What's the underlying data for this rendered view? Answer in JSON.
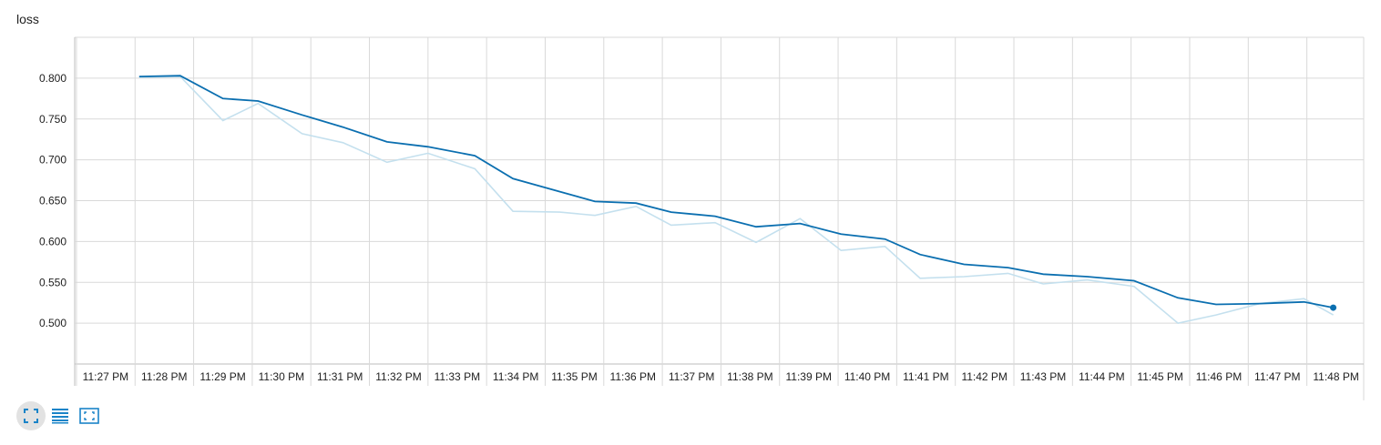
{
  "title": "loss",
  "colors": {
    "main_line": "#0b6fb0",
    "raw_line": "#c4e0ee",
    "grid": "#d9d9d9",
    "axis": "#bdbdbd",
    "icon": "#1a84c8"
  },
  "toolbar": {
    "buttons": [
      {
        "name": "fit-domain-button",
        "icon": "fullscreen-icon",
        "active": true
      },
      {
        "name": "toggle-log-button",
        "icon": "list-lines-icon",
        "active": false
      },
      {
        "name": "zoom-reset-button",
        "icon": "frame-select-icon",
        "active": false
      }
    ]
  },
  "chart_data": {
    "type": "line",
    "title": "loss",
    "xlabel": "",
    "ylabel": "",
    "x_ticks": [
      "11:27 PM",
      "11:28 PM",
      "11:29 PM",
      "11:30 PM",
      "11:31 PM",
      "11:32 PM",
      "11:33 PM",
      "11:34 PM",
      "11:35 PM",
      "11:36 PM",
      "11:37 PM",
      "11:38 PM",
      "11:39 PM",
      "11:40 PM",
      "11:41 PM",
      "11:42 PM",
      "11:43 PM",
      "11:44 PM",
      "11:45 PM",
      "11:46 PM",
      "11:47 PM",
      "11:48 PM"
    ],
    "x_tick_minutes": [
      27,
      28,
      29,
      30,
      31,
      32,
      33,
      34,
      35,
      36,
      37,
      38,
      39,
      40,
      41,
      42,
      43,
      44,
      45,
      46,
      47,
      48
    ],
    "y_ticks": [
      0.5,
      0.55,
      0.6,
      0.65,
      0.7,
      0.75,
      0.8
    ],
    "y_tick_labels": [
      "0.500",
      "0.550",
      "0.600",
      "0.650",
      "0.700",
      "0.750",
      "0.800"
    ],
    "xlim_minutes": [
      26.97,
      48.97
    ],
    "ylim": [
      0.45,
      0.85
    ],
    "grid": true,
    "series": [
      {
        "role": "smoothed",
        "x_minutes": [
          28.07,
          28.77,
          29.5,
          30.1,
          30.85,
          31.55,
          32.3,
          33.0,
          33.8,
          34.45,
          35.25,
          35.85,
          36.55,
          37.15,
          37.9,
          38.6,
          39.35,
          40.05,
          40.8,
          41.4,
          42.15,
          42.9,
          43.5,
          44.25,
          45.05,
          45.8,
          46.45,
          47.2,
          47.95
        ],
        "values": [
          0.802,
          0.803,
          0.775,
          0.772,
          0.755,
          0.74,
          0.722,
          0.716,
          0.705,
          0.677,
          0.661,
          0.649,
          0.647,
          0.636,
          0.631,
          0.618,
          0.622,
          0.609,
          0.603,
          0.584,
          0.572,
          0.568,
          0.56,
          0.557,
          0.552,
          0.531,
          0.523,
          0.524,
          0.526
        ]
      },
      {
        "role": "raw",
        "x_minutes": [
          28.07,
          28.77,
          29.5,
          30.1,
          30.85,
          31.55,
          32.3,
          33.0,
          33.8,
          34.45,
          35.25,
          35.85,
          36.55,
          37.15,
          37.9,
          38.6,
          39.35,
          40.05,
          40.8,
          41.4,
          42.15,
          42.9,
          43.5,
          44.25,
          45.05,
          45.8,
          46.45,
          47.2,
          47.95,
          48.45
        ],
        "values": [
          0.801,
          0.802,
          0.748,
          0.769,
          0.732,
          0.721,
          0.697,
          0.708,
          0.689,
          0.637,
          0.636,
          0.632,
          0.643,
          0.62,
          0.623,
          0.599,
          0.628,
          0.589,
          0.594,
          0.555,
          0.557,
          0.561,
          0.548,
          0.553,
          0.545,
          0.5,
          0.51,
          0.524,
          0.53,
          0.51
        ]
      }
    ],
    "last_point": {
      "x_minutes": 48.45,
      "value": 0.519
    }
  }
}
